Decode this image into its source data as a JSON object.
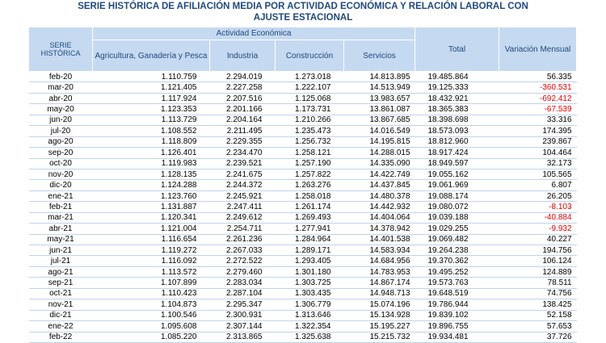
{
  "title_line1": "SERIE HISTÓRICA DE AFILIACIÓN MEDIA POR ACTIVIDAD ECONÓMICA Y RELACIÓN LABORAL CON",
  "title_line2": "AJUSTE ESTACIONAL",
  "headers": {
    "serie": "SERIE HISTÓRICA",
    "actividad": "Actividad Económica",
    "agricultura": "Agricultura, Ganadería y Pesca",
    "industria": "Industria",
    "construccion": "Construcción",
    "servicios": "Servicios",
    "total": "Total",
    "variacion": "Variación Mensual"
  },
  "colors": {
    "header_bg": "#c5d9f1",
    "header_text": "#1f497d",
    "negative": "#e00000"
  },
  "rows": [
    [
      "feb-20",
      "1.110.759",
      "2.294.019",
      "1.273.018",
      "14.813.895",
      "19.485.864",
      "56.335"
    ],
    [
      "mar-20",
      "1.121.405",
      "2.227.258",
      "1.222.107",
      "14.513.949",
      "19.125.333",
      "-360.531"
    ],
    [
      "abr-20",
      "1.117.924",
      "2.207.516",
      "1.125.068",
      "13.983.657",
      "18.432.921",
      "-692.412"
    ],
    [
      "may-20",
      "1.123.353",
      "2.201.166",
      "1.173.731",
      "13.861.087",
      "18.365.383",
      "-67.539"
    ],
    [
      "jun-20",
      "1.113.729",
      "2.204.164",
      "1.210.266",
      "13.867.685",
      "18.398.698",
      "33.316"
    ],
    [
      "jul-20",
      "1.108.552",
      "2.211.495",
      "1.235.473",
      "14.016.549",
      "18.573.093",
      "174.395"
    ],
    [
      "ago-20",
      "1.118.809",
      "2.229.355",
      "1.256.732",
      "14.195.815",
      "18.812.960",
      "239.867"
    ],
    [
      "sep-20",
      "1.126.401",
      "2.234.470",
      "1.258.121",
      "14.288.015",
      "18.917.424",
      "104.464"
    ],
    [
      "oct-20",
      "1.119.983",
      "2.239.521",
      "1.257.190",
      "14.335.090",
      "18.949.597",
      "32.173"
    ],
    [
      "nov-20",
      "1.128.135",
      "2.241.675",
      "1.257.822",
      "14.422.749",
      "19.055.162",
      "105.565"
    ],
    [
      "dic-20",
      "1.124.288",
      "2.244.372",
      "1.263.276",
      "14.437.845",
      "19.061.969",
      "6.807"
    ],
    [
      "ene-21",
      "1.123.760",
      "2.245.921",
      "1.258.018",
      "14.480.378",
      "19.088.174",
      "26.205"
    ],
    [
      "feb-21",
      "1.131.887",
      "2.247.411",
      "1.261.174",
      "14.442.932",
      "19.080.072",
      "-8.103"
    ],
    [
      "mar-21",
      "1.120.341",
      "2.249.612",
      "1.269.493",
      "14.404.064",
      "19.039.188",
      "-40.884"
    ],
    [
      "abr-21",
      "1.121.004",
      "2.254.711",
      "1.277.941",
      "14.378.942",
      "19.029.255",
      "-9.932"
    ],
    [
      "may-21",
      "1.116.654",
      "2.261.236",
      "1.284.964",
      "14.401.538",
      "19.069.482",
      "40.227"
    ],
    [
      "jun-21",
      "1.119.272",
      "2.267.033",
      "1.289.171",
      "14.583.934",
      "19.264.238",
      "194.756"
    ],
    [
      "jul-21",
      "1.116.092",
      "2.272.522",
      "1.293.405",
      "14.684.956",
      "19.370.362",
      "106.124"
    ],
    [
      "ago-21",
      "1.113.572",
      "2.279.460",
      "1.301.180",
      "14.783.953",
      "19.495.252",
      "124.889"
    ],
    [
      "sep-21",
      "1.107.899",
      "2.283.034",
      "1.303.725",
      "14.867.174",
      "19.573.763",
      "78.511"
    ],
    [
      "oct-21",
      "1.110.423",
      "2.287.104",
      "1.303.435",
      "14.948.713",
      "19.648.519",
      "74.756"
    ],
    [
      "nov-21",
      "1.104.873",
      "2.295.347",
      "1.306.779",
      "15.074.196",
      "19.786.944",
      "138.425"
    ],
    [
      "dic-21",
      "1.100.546",
      "2.300.931",
      "1.313.646",
      "15.134.928",
      "19.839.102",
      "52.158"
    ],
    [
      "ene-22",
      "1.095.608",
      "2.307.144",
      "1.322.354",
      "15.195.227",
      "19.896.755",
      "57.653"
    ],
    [
      "feb-22",
      "1.085.220",
      "2.313.865",
      "1.325.638",
      "15.215.732",
      "19.934.481",
      "37.726"
    ]
  ]
}
